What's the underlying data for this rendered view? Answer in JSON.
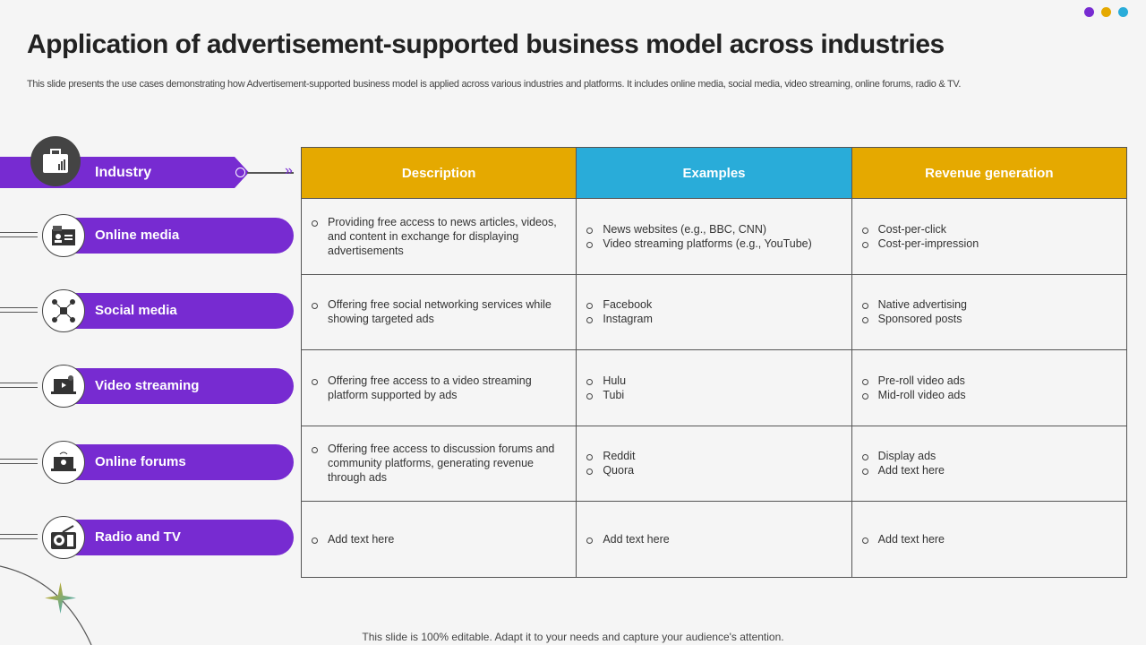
{
  "title": "Application of advertisement-supported business model across industries",
  "subtitle": "This slide presents the use cases demonstrating how Advertisement-supported business model is applied across various industries and platforms. It includes online media, social media, video streaming, online forums, radio & TV.",
  "colors": {
    "purple": "#772bd1",
    "gold": "#e5a900",
    "blue": "#29acd9"
  },
  "industry_label": "Industry",
  "industries": [
    {
      "label": "Online media",
      "icon": "id-card-icon"
    },
    {
      "label": "Social media",
      "icon": "network-icon"
    },
    {
      "label": "Video streaming",
      "icon": "laptop-video-icon"
    },
    {
      "label": "Online forums",
      "icon": "laptop-forum-icon"
    },
    {
      "label": "Radio and TV",
      "icon": "radio-icon"
    }
  ],
  "table": {
    "headers": [
      "Description",
      "Examples",
      "Revenue generation"
    ],
    "rows": [
      [
        [
          "Providing free access to news articles, videos, and content in exchange for displaying advertisements"
        ],
        [
          "News websites (e.g., BBC, CNN)",
          "Video streaming platforms (e.g., YouTube)"
        ],
        [
          "Cost-per-click",
          "Cost-per-impression"
        ]
      ],
      [
        [
          "Offering free social networking services while showing targeted ads"
        ],
        [
          "Facebook",
          "Instagram"
        ],
        [
          "Native advertising",
          "Sponsored posts"
        ]
      ],
      [
        [
          "Offering free access to a video streaming platform supported by ads"
        ],
        [
          "Hulu",
          "Tubi"
        ],
        [
          "Pre-roll video ads",
          "Mid-roll video ads"
        ]
      ],
      [
        [
          "Offering free access to discussion forums and community platforms, generating revenue through ads"
        ],
        [
          "Reddit",
          "Quora"
        ],
        [
          "Display ads",
          "Add text here"
        ]
      ],
      [
        [
          "Add text here"
        ],
        [
          "Add text here"
        ],
        [
          "Add text here"
        ]
      ]
    ]
  },
  "footer": "This slide is 100% editable. Adapt it to your needs and capture your audience's attention."
}
